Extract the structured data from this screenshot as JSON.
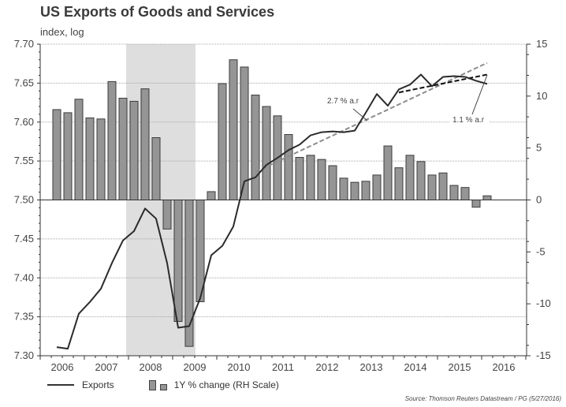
{
  "chart_data": {
    "type": "line+bar",
    "title": "US Exports of Goods and Services",
    "subtitle": "index, log",
    "xlabel": "",
    "x_ticks": [
      "2006",
      "2007",
      "2008",
      "2009",
      "2010",
      "2011",
      "2012",
      "2013",
      "2014",
      "2015",
      "2016"
    ],
    "y_left": {
      "label": "index, log",
      "range": [
        7.3,
        7.7
      ],
      "ticks": [
        "7.30",
        "7.35",
        "7.40",
        "7.45",
        "7.50",
        "7.55",
        "7.60",
        "7.65",
        "7.70"
      ]
    },
    "y_right": {
      "label": "1Y % change (RH Scale)",
      "range": [
        -15,
        15
      ],
      "ticks": [
        "-15",
        "-10",
        "-5",
        "0",
        "5",
        "10",
        "15"
      ]
    },
    "grid": "horizontal dotted",
    "recession_shading": {
      "from": "2007Q4",
      "to": "2009Q2"
    },
    "quarters": [
      "2006Q2",
      "2006Q3",
      "2006Q4",
      "2007Q1",
      "2007Q2",
      "2007Q3",
      "2007Q4",
      "2008Q1",
      "2008Q2",
      "2008Q3",
      "2008Q4",
      "2009Q1",
      "2009Q2",
      "2009Q3",
      "2009Q4",
      "2010Q1",
      "2010Q2",
      "2010Q3",
      "2010Q4",
      "2011Q1",
      "2011Q2",
      "2011Q3",
      "2011Q4",
      "2012Q1",
      "2012Q2",
      "2012Q3",
      "2012Q4",
      "2013Q1",
      "2013Q2",
      "2013Q3",
      "2013Q4",
      "2014Q1",
      "2014Q2",
      "2014Q3",
      "2014Q4",
      "2015Q1",
      "2015Q2",
      "2015Q3",
      "2015Q4",
      "2016Q1"
    ],
    "series": [
      {
        "name": "Exports",
        "type": "line",
        "axis": "left",
        "values": [
          7.311,
          7.309,
          7.354,
          7.369,
          7.386,
          7.419,
          7.448,
          7.46,
          7.489,
          7.476,
          7.419,
          7.336,
          7.338,
          7.374,
          7.429,
          7.441,
          7.466,
          7.524,
          7.529,
          7.545,
          7.554,
          7.564,
          7.571,
          7.583,
          7.587,
          7.588,
          7.587,
          7.589,
          7.612,
          7.636,
          7.621,
          7.642,
          7.648,
          7.661,
          7.646,
          7.658,
          7.659,
          7.658,
          7.653,
          7.649
        ]
      },
      {
        "name": "1Y % change (RH Scale)",
        "type": "bar",
        "axis": "right",
        "values": [
          8.7,
          8.4,
          9.7,
          7.9,
          7.8,
          11.4,
          9.8,
          9.5,
          10.7,
          6.0,
          -2.8,
          -11.7,
          -14.1,
          -9.8,
          0.8,
          11.2,
          13.5,
          12.8,
          10.1,
          9.0,
          8.1,
          6.3,
          4.1,
          4.3,
          3.9,
          3.3,
          2.1,
          1.7,
          1.8,
          2.4,
          5.2,
          3.1,
          4.3,
          3.7,
          2.4,
          2.6,
          1.4,
          1.2,
          -0.7,
          0.4
        ]
      }
    ],
    "trendlines": [
      {
        "label": "2.7 % a.r",
        "style": "gray dashed",
        "from": {
          "x": "2010Q4",
          "y": 7.536
        },
        "to": {
          "x": "2016Q1",
          "y": 7.676
        }
      },
      {
        "label": "1.1 % a.r",
        "style": "black dashed",
        "from": {
          "x": "2014Q1",
          "y": 7.638
        },
        "to": {
          "x": "2016Q1",
          "y": 7.661
        }
      }
    ],
    "legend": {
      "placement": "bottom-left",
      "entries": [
        "Exports",
        "1Y % change (RH Scale)"
      ]
    }
  },
  "legend": {
    "line_label": "Exports",
    "bar_label": "1Y % change (RH Scale)"
  },
  "source": "Source: Thomson Reuters Datastream / PG (5/27/2016)"
}
